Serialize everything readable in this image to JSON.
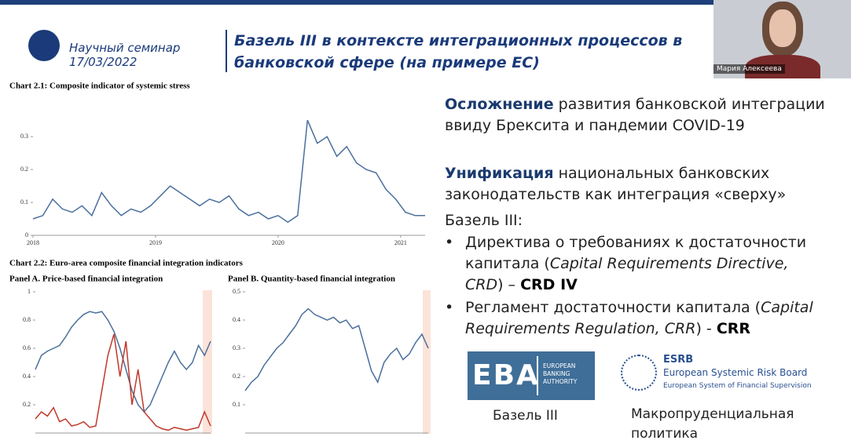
{
  "header": {
    "seminar": "Научный семинар",
    "date": "17/03/2022",
    "title_line1": "Базель III в контексте интеграционных процессов в",
    "title_line2": "банковской сфере (на примере ЕС)"
  },
  "video": {
    "name": "Мария Алексеева"
  },
  "figure": {
    "chart2_title": "Chart 2.2:  Euro-area composite financial integration indicators"
  },
  "chart_data": [
    {
      "type": "line",
      "title": "Chart 2.1:  Composite indicator of systemic stress",
      "x": [
        2018,
        2018.08,
        2018.16,
        2018.24,
        2018.32,
        2018.4,
        2018.48,
        2018.56,
        2018.64,
        2018.72,
        2018.8,
        2018.88,
        2018.96,
        2019.04,
        2019.12,
        2019.2,
        2019.28,
        2019.36,
        2019.44,
        2019.52,
        2019.6,
        2019.68,
        2019.76,
        2019.84,
        2019.92,
        2020,
        2020.08,
        2020.16,
        2020.24,
        2020.32,
        2020.4,
        2020.48,
        2020.56,
        2020.64,
        2020.72,
        2020.8,
        2020.88,
        2020.96,
        2021.04,
        2021.12,
        2021.2
      ],
      "series": [
        {
          "color": "#4a6f9c",
          "values": [
            0.05,
            0.06,
            0.11,
            0.08,
            0.07,
            0.09,
            0.06,
            0.13,
            0.09,
            0.06,
            0.08,
            0.07,
            0.09,
            0.12,
            0.15,
            0.13,
            0.11,
            0.09,
            0.11,
            0.1,
            0.12,
            0.08,
            0.06,
            0.07,
            0.05,
            0.06,
            0.04,
            0.06,
            0.35,
            0.28,
            0.3,
            0.24,
            0.27,
            0.22,
            0.2,
            0.19,
            0.14,
            0.11,
            0.07,
            0.06,
            0.06
          ]
        }
      ],
      "xlim": [
        2018,
        2021.2
      ],
      "xticks": [
        2018,
        2019,
        2020,
        2021
      ],
      "ylim": [
        0,
        0.36
      ],
      "yticks": [
        0,
        0.1,
        0.2,
        0.3
      ]
    },
    {
      "type": "line",
      "title": "Panel A. Price-based financial integration",
      "series": [
        {
          "color": "#4a6f9c",
          "values": [
            0.45,
            0.55,
            0.58,
            0.6,
            0.62,
            0.68,
            0.75,
            0.8,
            0.84,
            0.86,
            0.85,
            0.86,
            0.8,
            0.72,
            0.6,
            0.45,
            0.3,
            0.2,
            0.15,
            0.2,
            0.3,
            0.4,
            0.5,
            0.58,
            0.5,
            0.45,
            0.5,
            0.62,
            0.55,
            0.65
          ]
        },
        {
          "color": "#c0392b",
          "values": [
            0.1,
            0.15,
            0.12,
            0.18,
            0.08,
            0.1,
            0.05,
            0.06,
            0.08,
            0.04,
            0.05,
            0.3,
            0.55,
            0.7,
            0.4,
            0.65,
            0.2,
            0.45,
            0.15,
            0.1,
            0.05,
            0.03,
            0.02,
            0.04,
            0.03,
            0.02,
            0.03,
            0.04,
            0.15,
            0.05
          ]
        }
      ],
      "ylim": [
        0,
        1
      ],
      "yticks": [
        0.2,
        0.4,
        0.6,
        0.8,
        1
      ]
    },
    {
      "type": "line",
      "title": "Panel B. Quantity-based financial integration",
      "series": [
        {
          "color": "#4a6f9c",
          "values": [
            0.15,
            0.18,
            0.2,
            0.24,
            0.27,
            0.3,
            0.32,
            0.35,
            0.38,
            0.42,
            0.44,
            0.42,
            0.41,
            0.4,
            0.41,
            0.39,
            0.4,
            0.37,
            0.38,
            0.3,
            0.22,
            0.18,
            0.25,
            0.28,
            0.3,
            0.26,
            0.28,
            0.32,
            0.35,
            0.3
          ]
        }
      ],
      "ylim": [
        0,
        0.5
      ],
      "yticks": [
        0.1,
        0.2,
        0.3,
        0.4,
        0.5
      ]
    }
  ],
  "content": {
    "block1": {
      "bold": "Осложнение",
      "text": " развития банковской интеграции ввиду Брексита и пандемии COVID-19"
    },
    "block2": {
      "bold": "Унификация",
      "text": " национальных банковских законодательств как интеграция «сверху»"
    },
    "basel": "Базель III:",
    "bullets": [
      {
        "text": "Директива о требованиях к достаточности капитала (",
        "italic": "Capital Requirements Directive, CRD",
        "sep": ") – ",
        "bold": "CRD IV"
      },
      {
        "text": "Регламент достаточности капитала (",
        "italic": "Capital Requirements Regulation, CRR",
        "sep": ") - ",
        "bold": "CRR"
      }
    ]
  },
  "logos": {
    "eba": {
      "abbr": "EBA",
      "line1": "EUROPEAN",
      "line2": "BANKING",
      "line3": "AUTHORITY",
      "caption": "Базель III"
    },
    "esrb": {
      "abbr": "ESRB",
      "name": "European Systemic Risk Board",
      "sub": "European System of Financial Supervision",
      "caption_line1": "Макропруденциальная",
      "caption_line2": "политика"
    }
  }
}
